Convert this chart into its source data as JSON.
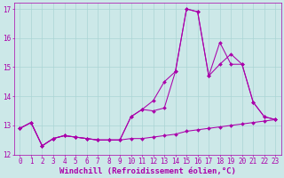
{
  "background_color": "#cce8e8",
  "plot_bg_color": "#cce8e8",
  "line_color": "#aa00aa",
  "xlabel": "Windchill (Refroidissement éolien,°C)",
  "ylim": [
    12,
    17.2
  ],
  "xlim": [
    -0.5,
    23.5
  ],
  "yticks": [
    12,
    13,
    14,
    15,
    16,
    17
  ],
  "xticks": [
    0,
    1,
    2,
    3,
    4,
    5,
    6,
    7,
    8,
    9,
    10,
    11,
    12,
    13,
    14,
    15,
    16,
    17,
    18,
    19,
    20,
    21,
    22,
    23
  ],
  "series1_x": [
    0,
    1,
    2,
    3,
    4,
    5,
    6,
    7,
    8,
    9,
    10,
    11,
    12,
    13,
    14,
    15,
    16,
    17,
    18,
    19,
    20,
    21,
    22,
    23
  ],
  "series1_y": [
    12.9,
    13.1,
    12.3,
    12.55,
    12.65,
    12.6,
    12.55,
    12.5,
    12.5,
    12.5,
    12.55,
    12.55,
    12.6,
    12.65,
    12.7,
    12.8,
    12.85,
    12.9,
    12.95,
    13.0,
    13.05,
    13.1,
    13.15,
    13.2
  ],
  "series2_x": [
    0,
    1,
    2,
    3,
    4,
    5,
    6,
    7,
    8,
    9,
    10,
    11,
    12,
    13,
    14,
    15,
    16,
    17,
    18,
    19,
    20,
    21,
    22,
    23
  ],
  "series2_y": [
    12.9,
    13.1,
    12.3,
    12.55,
    12.65,
    12.6,
    12.55,
    12.5,
    12.5,
    12.5,
    13.3,
    13.55,
    13.85,
    14.5,
    14.85,
    17.0,
    16.9,
    14.7,
    15.85,
    15.1,
    15.1,
    13.8,
    13.3,
    13.2
  ],
  "series3_x": [
    0,
    1,
    2,
    3,
    4,
    5,
    6,
    7,
    8,
    9,
    10,
    11,
    12,
    13,
    14,
    15,
    16,
    17,
    18,
    19,
    20,
    21,
    22,
    23
  ],
  "series3_y": [
    12.9,
    13.1,
    12.3,
    12.55,
    12.65,
    12.6,
    12.55,
    12.5,
    12.5,
    12.5,
    13.3,
    13.55,
    13.5,
    13.6,
    14.85,
    17.0,
    16.9,
    14.7,
    15.1,
    15.45,
    15.1,
    13.8,
    13.3,
    13.2
  ],
  "grid_color": "#aad4d4",
  "tick_fontsize": 5.5,
  "xlabel_fontsize": 6.5,
  "marker_size": 2.0,
  "line_width": 0.75
}
